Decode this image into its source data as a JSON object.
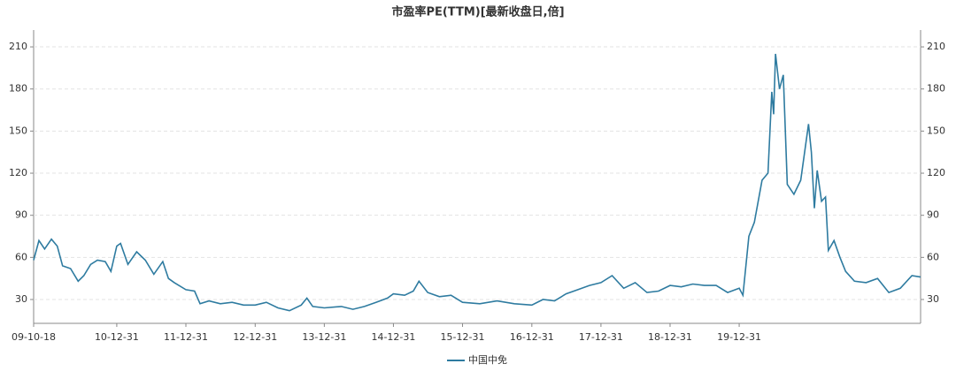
{
  "chart_data": {
    "type": "line",
    "title": "市盈率PE(TTM)[最新收盘日,倍]",
    "x": [
      "09-10-18",
      "09-11-15",
      "09-12-15",
      "10-01-20",
      "10-02-20",
      "10-03-20",
      "10-05-01",
      "10-06-10",
      "10-07-10",
      "10-08-15",
      "10-09-20",
      "10-10-31",
      "10-11-30",
      "10-12-31",
      "11-01-20",
      "11-02-28",
      "11-04-15",
      "11-05-31",
      "11-07-15",
      "11-08-31",
      "11-09-30",
      "11-10-31",
      "11-12-31",
      "12-02-15",
      "12-03-15",
      "12-05-01",
      "12-06-30",
      "12-08-31",
      "12-10-31",
      "12-12-31",
      "13-02-28",
      "13-04-30",
      "13-06-30",
      "13-08-31",
      "13-09-30",
      "13-10-31",
      "13-12-31",
      "14-03-31",
      "14-05-31",
      "14-07-31",
      "14-09-30",
      "14-11-30",
      "14-12-31",
      "15-02-28",
      "15-04-15",
      "15-05-15",
      "15-06-30",
      "15-08-31",
      "15-10-31",
      "15-12-31",
      "16-03-31",
      "16-06-30",
      "16-09-30",
      "16-12-31",
      "17-02-28",
      "17-04-30",
      "17-06-30",
      "17-08-31",
      "17-10-31",
      "17-12-31",
      "18-02-28",
      "18-04-30",
      "18-06-30",
      "18-08-31",
      "18-10-31",
      "18-12-31",
      "19-02-28",
      "19-04-30",
      "19-06-30",
      "19-08-31",
      "19-10-31",
      "19-12-31",
      "20-01-20",
      "20-02-20",
      "20-03-20",
      "20-04-30",
      "20-05-31",
      "20-06-20",
      "20-06-30",
      "20-07-10",
      "20-07-31",
      "20-08-20",
      "20-09-10",
      "20-10-15",
      "20-11-20",
      "20-12-31",
      "21-01-15",
      "21-01-31",
      "21-02-15",
      "21-03-10",
      "21-03-31",
      "21-04-15",
      "21-05-15",
      "21-06-15",
      "21-07-15",
      "21-08-31",
      "21-10-31",
      "21-12-31",
      "22-02-28",
      "22-04-30",
      "22-06-30",
      "22-08-15"
    ],
    "series": [
      {
        "name": "中国中免",
        "color": "#2e7ba0",
        "values": [
          58,
          72,
          66,
          73,
          68,
          54,
          52,
          43,
          47,
          55,
          58,
          57,
          50,
          68,
          70,
          55,
          64,
          58,
          48,
          57,
          45,
          42,
          37,
          36,
          27,
          29,
          27,
          28,
          26,
          26,
          28,
          24,
          22,
          26,
          31,
          25,
          24,
          25,
          23,
          25,
          28,
          31,
          34,
          33,
          36,
          43,
          35,
          32,
          33,
          28,
          27,
          29,
          27,
          26,
          30,
          29,
          34,
          37,
          40,
          42,
          47,
          38,
          42,
          35,
          36,
          40,
          39,
          41,
          40,
          40,
          35,
          38,
          33,
          75,
          85,
          115,
          120,
          178,
          162,
          205,
          180,
          190,
          112,
          105,
          115,
          155,
          135,
          95,
          122,
          100,
          103,
          65,
          72,
          60,
          50,
          43,
          42,
          45,
          35,
          38,
          47,
          46
        ]
      }
    ],
    "xlim": [
      "09-10-18",
      "22-08-15"
    ],
    "xticks": [
      "09-10-18",
      "10-12-31",
      "11-12-31",
      "12-12-31",
      "13-12-31",
      "14-12-31",
      "15-12-31",
      "16-12-31",
      "17-12-31",
      "18-12-31",
      "19-12-31"
    ],
    "ylim": [
      13,
      222
    ],
    "yticks": [
      30,
      60,
      90,
      120,
      150,
      180,
      210
    ],
    "y2lim": [
      13,
      222
    ],
    "y2ticks": [
      30,
      60,
      90,
      120,
      150,
      180,
      210
    ],
    "grid": true,
    "legend": "bottom"
  }
}
